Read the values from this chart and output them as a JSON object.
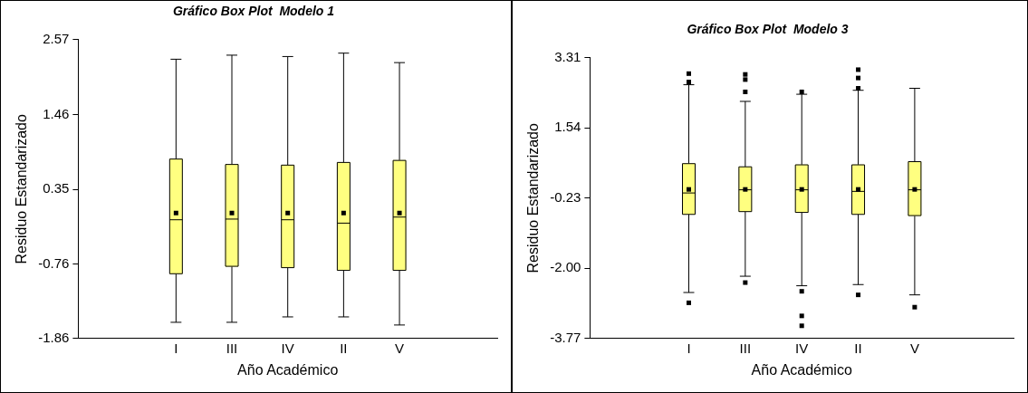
{
  "chart_data": [
    {
      "type": "box",
      "title": "Gráfico Box Plot  Modelo 1",
      "xlabel": "Año Académico",
      "ylabel": "Residuo Estandarizado",
      "categories": [
        "I",
        "III",
        "IV",
        "II",
        "V"
      ],
      "color": "#ffff80",
      "ylim": [
        -1.86,
        2.57
      ],
      "yticks": [
        2.57,
        1.46,
        0.35,
        -0.76,
        -1.86
      ],
      "grid": false,
      "legend": false,
      "boxes": [
        {
          "low": -1.62,
          "q1": -0.9,
          "median": -0.1,
          "q3": 0.8,
          "high": 2.28,
          "mean": 0.0
        },
        {
          "low": -1.62,
          "q1": -0.79,
          "median": -0.09,
          "q3": 0.72,
          "high": 2.34,
          "mean": 0.0
        },
        {
          "low": -1.54,
          "q1": -0.81,
          "median": -0.1,
          "q3": 0.71,
          "high": 2.32,
          "mean": 0.0
        },
        {
          "low": -1.54,
          "q1": -0.85,
          "median": -0.15,
          "q3": 0.75,
          "high": 2.37,
          "mean": 0.0
        },
        {
          "low": -1.66,
          "q1": -0.85,
          "median": -0.06,
          "q3": 0.78,
          "high": 2.23,
          "mean": 0.0
        }
      ]
    },
    {
      "type": "box",
      "title": "Gráfico Box Plot  Modelo 3",
      "xlabel": "Año Académico",
      "ylabel": "Residuo Estandarizado",
      "categories": [
        "I",
        "III",
        "IV",
        "II",
        "V"
      ],
      "color": "#ffff80",
      "ylim": [
        -3.77,
        3.31
      ],
      "yticks": [
        3.31,
        1.54,
        -0.23,
        {
          "value": -2.0,
          "label": "-2.00"
        },
        {
          "value": -3.77,
          "label": "-3.77"
        }
      ],
      "grid": false,
      "legend": false,
      "boxes": [
        {
          "low": -2.61,
          "q1": -0.64,
          "median": -0.1,
          "q3": 0.64,
          "high": 2.63,
          "mean": -0.01,
          "outliers": [
            2.91,
            2.7,
            -2.87
          ]
        },
        {
          "low": -2.2,
          "q1": -0.57,
          "median": -0.02,
          "q3": 0.56,
          "high": 2.21,
          "mean": -0.01,
          "outliers": [
            2.89,
            2.76,
            2.45,
            -2.36
          ]
        },
        {
          "low": -2.44,
          "q1": -0.59,
          "median": -0.02,
          "q3": 0.61,
          "high": 2.39,
          "mean": -0.01,
          "outliers": [
            2.45,
            -2.58,
            -3.2,
            -3.45
          ]
        },
        {
          "low": -2.41,
          "q1": -0.64,
          "median": -0.06,
          "q3": 0.61,
          "high": 2.49,
          "mean": -0.01,
          "outliers": [
            3.01,
            2.8,
            2.54,
            -2.67
          ]
        },
        {
          "low": -2.67,
          "q1": -0.67,
          "median": -0.02,
          "q3": 0.69,
          "high": 2.54,
          "mean": -0.01,
          "outliers": [
            -2.98
          ]
        }
      ]
    }
  ]
}
